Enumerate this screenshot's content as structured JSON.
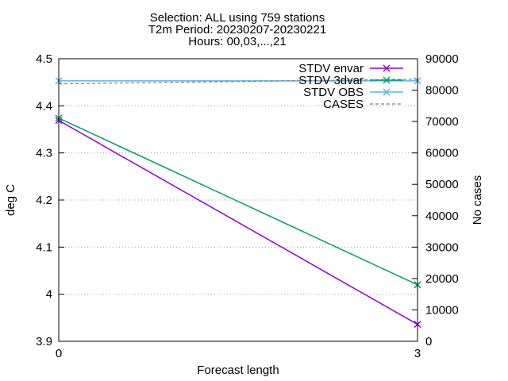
{
  "chart_data": {
    "type": "line",
    "title_lines": [
      "Selection: ALL using   759 stations",
      "T2m   Period: 20230207-20230221",
      "Hours: 00,03,...,21"
    ],
    "xlabel": "Forecast length",
    "ylabel": "deg C",
    "y2label": "No cases",
    "x": [
      0,
      3
    ],
    "xlim": [
      0,
      3
    ],
    "ylim": [
      3.9,
      4.5
    ],
    "y2lim": [
      0,
      90000
    ],
    "xticks": [
      0,
      3
    ],
    "yticks": [
      3.9,
      4.0,
      4.1,
      4.2,
      4.3,
      4.4,
      4.5
    ],
    "ytick_labels": [
      "3.9",
      "4",
      "4.1",
      "4.2",
      "4.3",
      "4.4",
      "4.5"
    ],
    "y2ticks": [
      0,
      10000,
      20000,
      30000,
      40000,
      50000,
      60000,
      70000,
      80000,
      90000
    ],
    "grid": "horizontal dotted",
    "legend": "top-right",
    "series": [
      {
        "name": "STDV envar",
        "axis": "left",
        "values": [
          4.369,
          3.936
        ],
        "color": "#9400d3",
        "style": "solid",
        "marker": "x"
      },
      {
        "name": "STDV 3dvar",
        "axis": "left",
        "values": [
          4.374,
          4.02
        ],
        "color": "#009e73",
        "style": "solid",
        "marker": "x"
      },
      {
        "name": "STDV OBS",
        "axis": "left",
        "values": [
          4.453,
          4.453
        ],
        "color": "#56b4e9",
        "style": "solid",
        "marker": "x"
      },
      {
        "name": "CASES",
        "axis": "right",
        "values": [
          82000,
          83500
        ],
        "color": "#808080",
        "style": "dashed",
        "marker": "none"
      }
    ]
  }
}
